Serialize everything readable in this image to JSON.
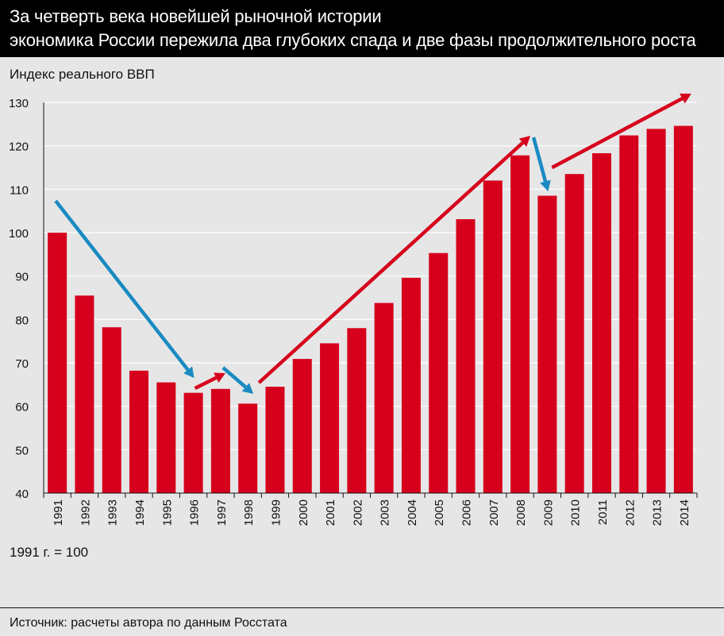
{
  "header": {
    "title_line1": "За четверть века новейшей рыночной истории",
    "title_line2": "экономика России пережила два глубоких спада и две фазы продолжительного роста"
  },
  "footer": {
    "note": "1991 г. = 100",
    "source": "Источник: расчеты автора по данным Росстата"
  },
  "colors": {
    "bar": "#d6001c",
    "rise_arrow": "#d6001c",
    "fall_arrow": "#1a8ac2",
    "grid": "#ffffff",
    "background": "#e6e6e6"
  },
  "chart_data": {
    "type": "bar",
    "ylabel": "Индекс реального ВВП",
    "ylim": [
      40,
      130
    ],
    "yticks": [
      40,
      50,
      60,
      70,
      80,
      90,
      100,
      110,
      120,
      130
    ],
    "grid": true,
    "categories": [
      "1991",
      "1992",
      "1993",
      "1994",
      "1995",
      "1996",
      "1997",
      "1998",
      "1999",
      "2000",
      "2001",
      "2002",
      "2003",
      "2004",
      "2005",
      "2006",
      "2007",
      "2008",
      "2009",
      "2010",
      "2011",
      "2012",
      "2013",
      "2014"
    ],
    "values": [
      100,
      85.5,
      78.2,
      68.2,
      65.5,
      63.1,
      64.0,
      60.6,
      64.5,
      70.9,
      74.5,
      78.0,
      83.8,
      89.6,
      95.3,
      103.1,
      112.0,
      117.8,
      108.5,
      113.5,
      118.3,
      122.4,
      123.9,
      124.6
    ],
    "annotations": [
      {
        "kind": "decline",
        "from": "1991",
        "to": "1996"
      },
      {
        "kind": "growth",
        "from": "1996",
        "to": "1997"
      },
      {
        "kind": "decline",
        "from": "1997",
        "to": "1998"
      },
      {
        "kind": "growth",
        "from": "1998",
        "to": "2008"
      },
      {
        "kind": "decline",
        "from": "2008",
        "to": "2009"
      },
      {
        "kind": "growth",
        "from": "2009",
        "to": "2014"
      }
    ]
  }
}
